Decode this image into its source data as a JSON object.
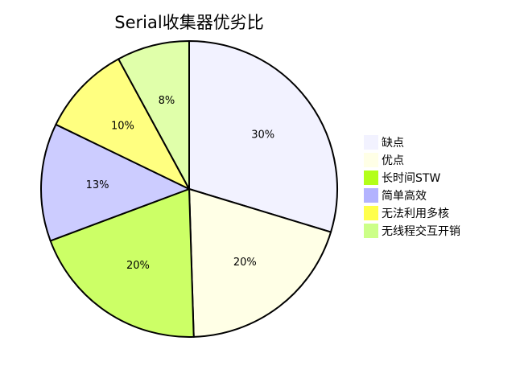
{
  "chart_data": {
    "type": "pie",
    "title": "Serial收集器优劣比",
    "start_angle": "top, clockwise",
    "slices": [
      {
        "label": "缺点",
        "value": 30,
        "display": "30%",
        "color": "#f2f2ff"
      },
      {
        "label": "优点",
        "value": 20,
        "display": "20%",
        "color": "#ffffe6"
      },
      {
        "label": "长时间STW",
        "value": 20,
        "display": "20%",
        "color": "#ccff66"
      },
      {
        "label": "简单高效",
        "value": 13,
        "display": "13%",
        "color": "#ccccff"
      },
      {
        "label": "无法利用多核",
        "value": 10,
        "display": "10%",
        "color": "#ffff80"
      },
      {
        "label": "无线程交互开销",
        "value": 8,
        "display": "8%",
        "color": "#e0ffaa"
      }
    ],
    "legend": {
      "position": "right",
      "entries": [
        {
          "label": "缺点",
          "color": "#f2f2ff"
        },
        {
          "label": "优点",
          "color": "#ffffe6"
        },
        {
          "label": "长时间STW",
          "color": "#b3ff1a"
        },
        {
          "label": "简单高效",
          "color": "#b3b3ff"
        },
        {
          "label": "无法利用多核",
          "color": "#ffff4d"
        },
        {
          "label": "无线程交互开销",
          "color": "#ccff88"
        }
      ]
    }
  }
}
